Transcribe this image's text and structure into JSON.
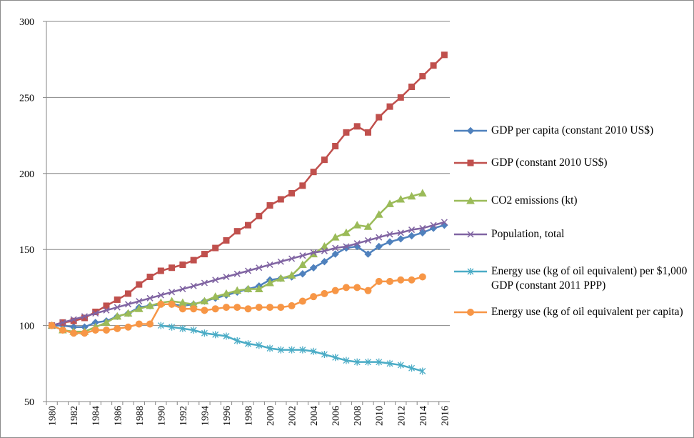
{
  "chart_data": {
    "type": "line",
    "categories": [
      1980,
      null,
      1982,
      null,
      1984,
      null,
      1986,
      null,
      1988,
      null,
      1990,
      null,
      1992,
      null,
      1994,
      null,
      1996,
      null,
      1998,
      null,
      2000,
      null,
      2002,
      null,
      2004,
      null,
      2006,
      null,
      2008,
      null,
      2010,
      null,
      2012,
      null,
      2014,
      null,
      2016
    ],
    "ylim": [
      50,
      300
    ],
    "yticks": [
      50,
      100,
      150,
      200,
      250,
      300
    ],
    "grid": true,
    "series": [
      {
        "name": "GDP per capita (constant 2010 US$)",
        "color": "#4f81bd",
        "marker": "diamond",
        "values": [
          100,
          100,
          99,
          99,
          102,
          103,
          106,
          108,
          112,
          113,
          114,
          114,
          113,
          114,
          116,
          118,
          120,
          122,
          124,
          126,
          130,
          131,
          132,
          134,
          138,
          142,
          147,
          151,
          152,
          147,
          152,
          155,
          157,
          159,
          161,
          164,
          166
        ]
      },
      {
        "name": "GDP (constant 2010 US$)",
        "color": "#c0504d",
        "marker": "square",
        "values": [
          100,
          102,
          103,
          105,
          109,
          113,
          117,
          121,
          127,
          132,
          136,
          138,
          140,
          143,
          147,
          151,
          156,
          162,
          166,
          172,
          179,
          183,
          187,
          192,
          201,
          209,
          218,
          227,
          231,
          227,
          237,
          244,
          250,
          257,
          264,
          271,
          278
        ]
      },
      {
        "name": "CO2 emissions (kt)",
        "color": "#9bbb59",
        "marker": "triangle",
        "values": [
          100,
          97,
          96,
          96,
          99,
          102,
          106,
          108,
          111,
          113,
          115,
          116,
          115,
          114,
          116,
          119,
          121,
          123,
          124,
          124,
          128,
          131,
          133,
          140,
          147,
          152,
          158,
          161,
          166,
          165,
          173,
          180,
          183,
          185,
          187,
          null,
          null
        ]
      },
      {
        "name": "Population, total",
        "color": "#8064a2",
        "marker": "x",
        "values": [
          100,
          102,
          104,
          106,
          108,
          110,
          112,
          114,
          116,
          118,
          120,
          122,
          124,
          126,
          128,
          130,
          132,
          134,
          136,
          138,
          140,
          142,
          144,
          146,
          148,
          149,
          151,
          152,
          154,
          156,
          158,
          160,
          161,
          163,
          164,
          166,
          168
        ]
      },
      {
        "name": "Energy use (kg of oil equivalent) per $1,000 GDP (constant 2011 PPP)",
        "color": "#4bacc6",
        "marker": "star",
        "values": [
          null,
          null,
          null,
          null,
          null,
          null,
          null,
          null,
          null,
          null,
          100,
          99,
          98,
          97,
          95,
          94,
          93,
          90,
          88,
          87,
          85,
          84,
          84,
          84,
          83,
          81,
          79,
          77,
          76,
          76,
          76,
          75,
          74,
          72,
          70,
          null,
          null
        ]
      },
      {
        "name": "Energy use (kg of oil equivalent per capita)",
        "color": "#f79646",
        "marker": "circle",
        "values": [
          100,
          97,
          95,
          95,
          97,
          97,
          98,
          99,
          101,
          101,
          114,
          114,
          111,
          111,
          110,
          111,
          112,
          112,
          111,
          112,
          112,
          112,
          113,
          116,
          119,
          121,
          123,
          125,
          125,
          123,
          129,
          129,
          130,
          130,
          132,
          null,
          null
        ]
      }
    ]
  }
}
